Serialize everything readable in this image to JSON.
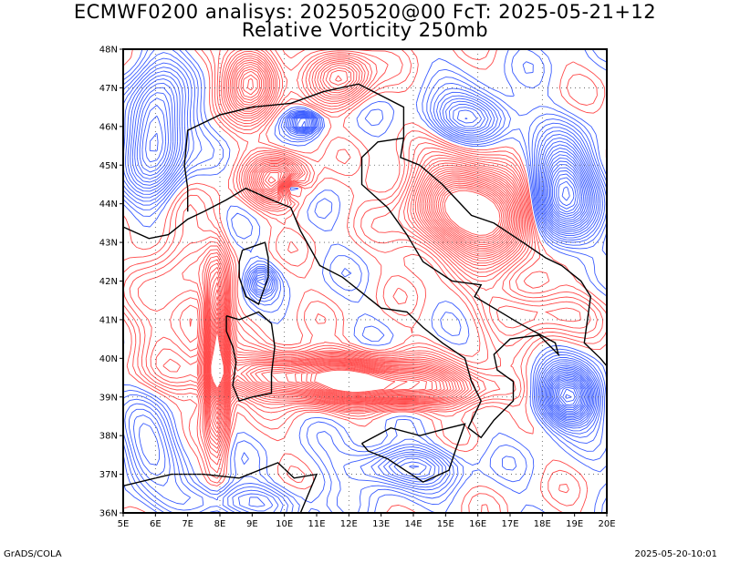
{
  "title": {
    "line1": "ECMWF0200 analisys: 20250520@00 FcT: 2025-05-21+12",
    "line2": "Relative Vorticity 250mb"
  },
  "map": {
    "lon_range": [
      5,
      20
    ],
    "lat_range": [
      36,
      48
    ],
    "lon_ticks": [
      "5E",
      "6E",
      "7E",
      "8E",
      "9E",
      "10E",
      "11E",
      "12E",
      "13E",
      "14E",
      "15E",
      "16E",
      "17E",
      "18E",
      "19E",
      "20E"
    ],
    "lat_ticks": [
      "36N",
      "37N",
      "38N",
      "39N",
      "40N",
      "41N",
      "42N",
      "43N",
      "44N",
      "45N",
      "46N",
      "47N",
      "48N"
    ],
    "field": "relative_vorticity",
    "level": "250mb",
    "colors": {
      "positive_contour": "#ff4a4a",
      "negative_contour": "#3a5cff",
      "coastline": "#000000",
      "gridline": "#555555"
    }
  },
  "footer": {
    "left": "GrADS/COLA",
    "right": "2025-05-20-10:01"
  }
}
